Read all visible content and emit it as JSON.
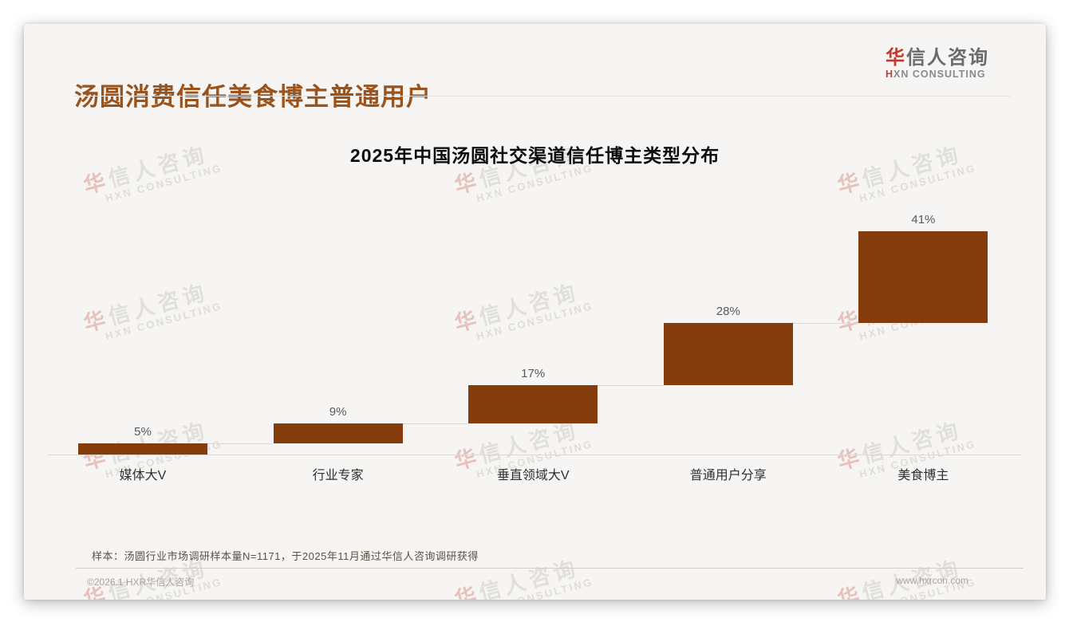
{
  "page": {
    "header": {
      "title": "汤圆消费信任美食博主普通用户",
      "logo": {
        "line1_accent": "华",
        "line1_rest": "信人咨询",
        "line2_accent": "H",
        "line2_rest": "XN CONSULTING"
      }
    },
    "watermark": {
      "line1_accent": "华",
      "line1_rest": "信人咨询",
      "line2": "HXN CONSULTING"
    },
    "footnote": "样本：汤圆行业市场调研样本量N=1171，于2025年11月通过华信人咨询调研获得",
    "footer": {
      "left": "©2026.1 HXR华信人咨询",
      "right": "www.hxrcon.com"
    }
  },
  "chart_data": {
    "type": "bar",
    "subtype": "cumulative-waterfall-stairs",
    "title": "2025年中国汤圆社交渠道信任博主类型分布",
    "categories": [
      "媒体大V",
      "行业专家",
      "垂直领域大V",
      "普通用户分享",
      "美食博主"
    ],
    "values": [
      5,
      9,
      17,
      28,
      41
    ],
    "value_labels": [
      "5%",
      "9%",
      "17%",
      "28%",
      "41%"
    ],
    "unit": "%",
    "ylim": [
      0,
      100
    ],
    "grid": false,
    "legend": false,
    "baseline_axis": true,
    "bar_color": "#843c0c",
    "connector_color": "#dcd9d5",
    "value_label_color": "#595959",
    "category_label_color": "#2f2f2f"
  },
  "theme": {
    "page_bg": "#ffffff",
    "card_bg": "#f6f5f3",
    "page_title_color": "#9a531c",
    "logo_accent_color": "#c23a2c",
    "logo_text_color": "#6b6b6b",
    "footnote_color": "#5a5248",
    "footer_text_color": "#a9a39d"
  }
}
